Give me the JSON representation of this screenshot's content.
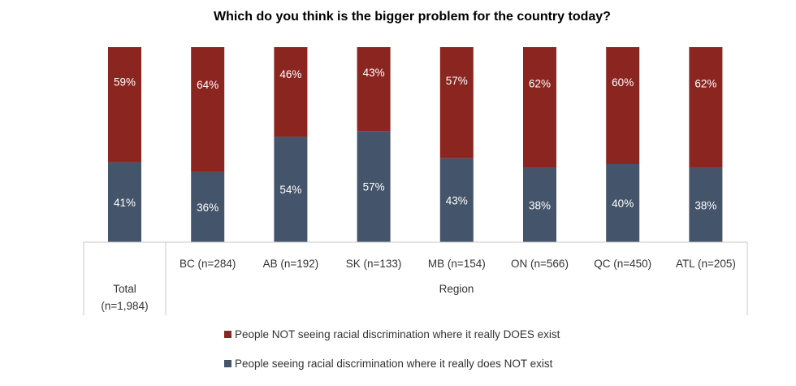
{
  "chart_data": {
    "type": "bar",
    "stacked": true,
    "title": "Which do you think is the bigger problem for the country today?",
    "categories": [
      "Total\n(n=1,984)",
      "BC (n=284)",
      "AB (n=192)",
      "SK (n=133)",
      "MB (n=154)",
      "ON (n=566)",
      "QC (n=450)",
      "ATL (n=205)"
    ],
    "group_label": "Region",
    "ylim": [
      0,
      100
    ],
    "series": [
      {
        "name": "People seeing racial discrimination where it really does NOT exist",
        "color": "#44546A",
        "values": [
          41,
          36,
          54,
          57,
          43,
          38,
          40,
          38
        ]
      },
      {
        "name": "People NOT seeing racial discrimination where it really DOES exist",
        "color": "#8B2520",
        "values": [
          59,
          64,
          46,
          43,
          57,
          62,
          60,
          62
        ]
      }
    ],
    "legend_position": "bottom"
  }
}
